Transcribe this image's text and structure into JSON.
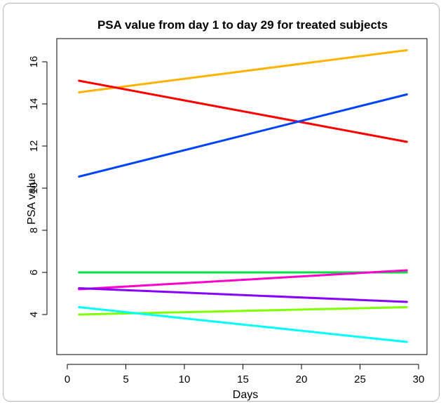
{
  "chart_data": {
    "type": "line",
    "title": "PSA value from day 1 to day 29 for treated subjects",
    "xlabel": "Days",
    "ylabel": "PSA value",
    "xlim": [
      0,
      30
    ],
    "ylim": [
      2.7,
      16.5
    ],
    "xticks": [
      0,
      5,
      10,
      15,
      20,
      25,
      30
    ],
    "yticks": [
      4,
      6,
      8,
      10,
      12,
      14,
      16
    ],
    "grid": false,
    "series": [
      {
        "color": "#FFB300",
        "x": [
          1,
          29
        ],
        "y": [
          14.55,
          16.55
        ]
      },
      {
        "color": "#FF0000",
        "x": [
          1,
          29
        ],
        "y": [
          15.1,
          12.2
        ]
      },
      {
        "color": "#0044FF",
        "x": [
          1,
          29
        ],
        "y": [
          10.55,
          14.45
        ]
      },
      {
        "color": "#00E040",
        "x": [
          1,
          29
        ],
        "y": [
          6.0,
          6.0
        ]
      },
      {
        "color": "#FF00CC",
        "x": [
          1,
          29
        ],
        "y": [
          5.2,
          6.1
        ]
      },
      {
        "color": "#8800FF",
        "x": [
          1,
          29
        ],
        "y": [
          5.25,
          4.6
        ]
      },
      {
        "color": "#80FF00",
        "x": [
          1,
          29
        ],
        "y": [
          4.0,
          4.35
        ]
      },
      {
        "color": "#00FFFF",
        "x": [
          1,
          29
        ],
        "y": [
          4.35,
          2.7
        ]
      }
    ]
  }
}
